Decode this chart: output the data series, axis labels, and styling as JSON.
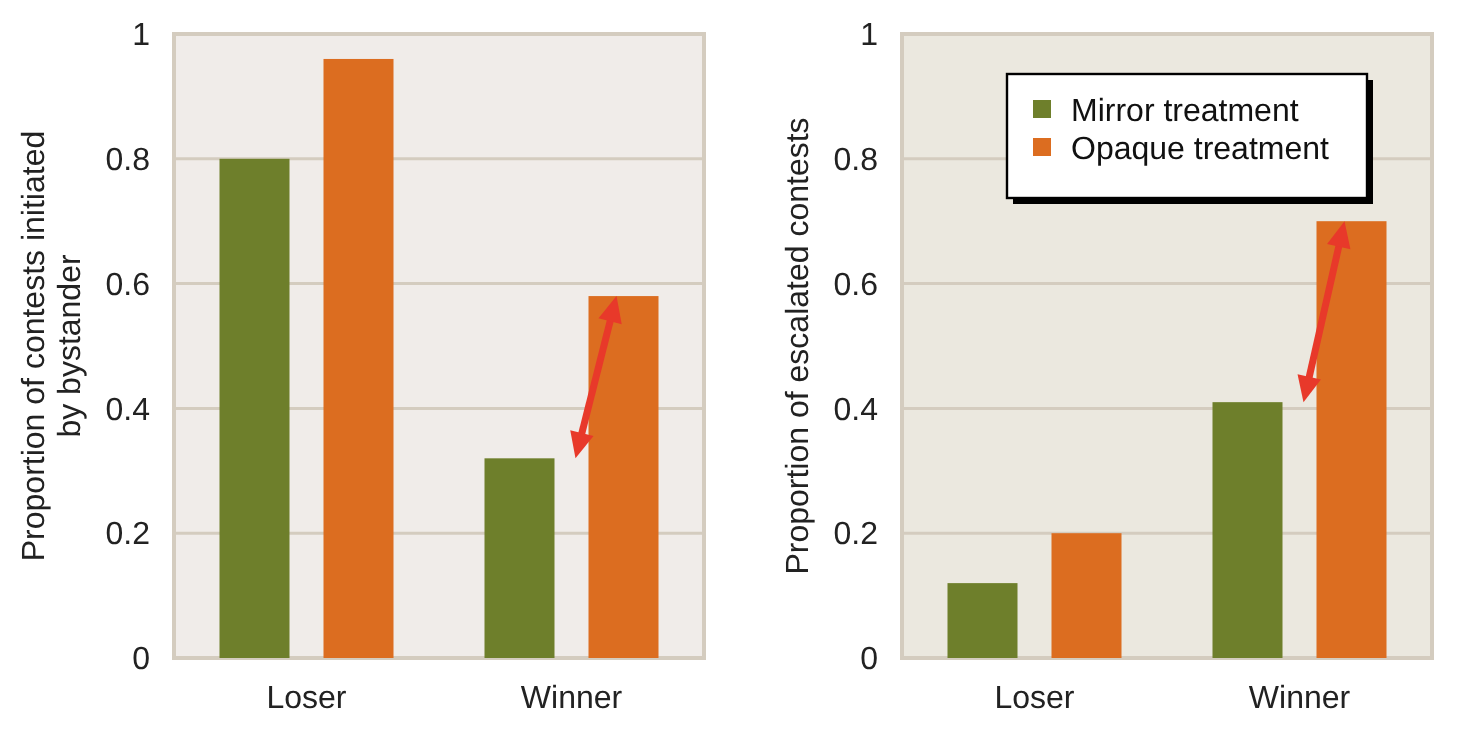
{
  "chart_data": [
    {
      "type": "bar",
      "categories": [
        "Loser",
        "Winner"
      ],
      "ylabel": "Proportion of contests initiated by bystander",
      "ylim": [
        0,
        1
      ],
      "yticks": [
        0,
        0.2,
        0.4,
        0.6,
        0.8,
        1
      ],
      "grid": "y",
      "legend": false,
      "series": [
        {
          "color": "#6e7f2b",
          "values": [
            0.8,
            0.32
          ]
        },
        {
          "color": "#dc6d20",
          "values": [
            0.96,
            0.58
          ]
        }
      ]
    },
    {
      "type": "bar",
      "categories": [
        "Loser",
        "Winner"
      ],
      "ylabel": "Proportion of escalated contests",
      "ylim": [
        0,
        1
      ],
      "yticks": [
        0,
        0.2,
        0.4,
        0.6,
        0.8,
        1
      ],
      "grid": "y",
      "legend": "top",
      "series": [
        {
          "name": "Mirror treatment",
          "color": "#6e7f2b",
          "values": [
            0.12,
            0.41
          ]
        },
        {
          "name": "Opaque treatment",
          "color": "#dc6d20",
          "values": [
            0.2,
            0.7
          ]
        }
      ]
    }
  ]
}
